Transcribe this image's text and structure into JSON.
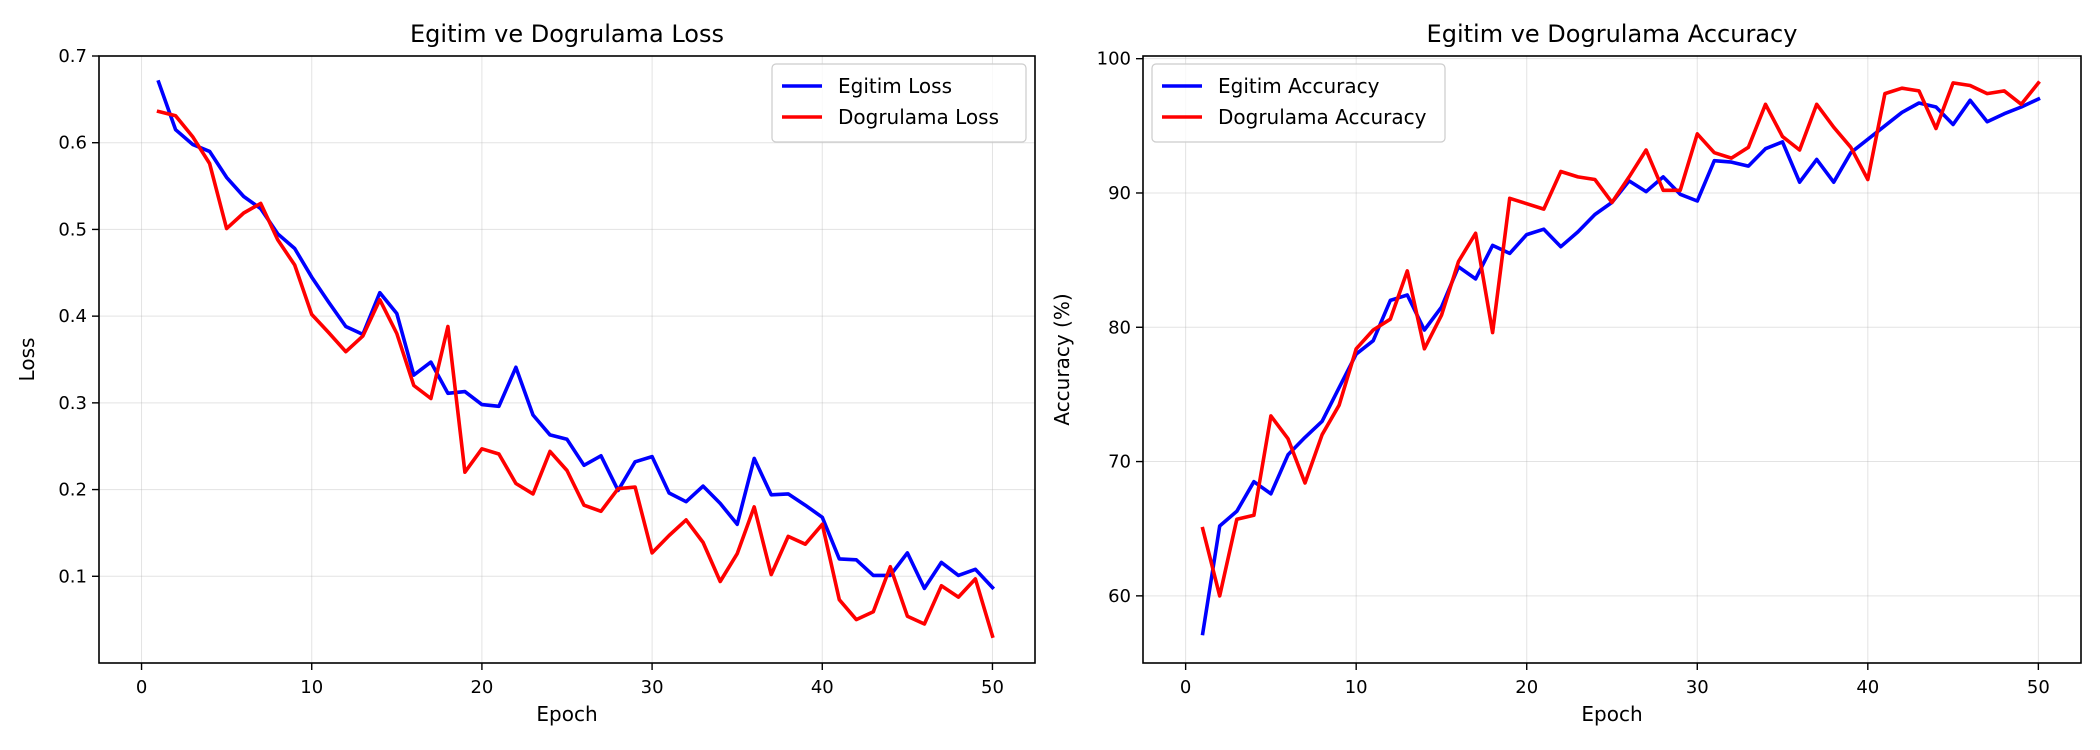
{
  "chart_data": [
    {
      "type": "line",
      "title": "Egitim ve Dogrulama Loss",
      "xlabel": "Epoch",
      "ylabel": "Loss",
      "xlim": [
        -2.5,
        52.5
      ],
      "ylim": [
        0.0,
        0.7
      ],
      "xticks": [
        0,
        10,
        20,
        30,
        40,
        50
      ],
      "yticks": [
        0.1,
        0.2,
        0.3,
        0.4,
        0.5,
        0.6,
        0.7
      ],
      "ytick_labels": [
        "0.1",
        "0.2",
        "0.3",
        "0.4",
        "0.5",
        "0.6",
        "0.7"
      ],
      "grid": true,
      "legend_position": "top-right",
      "x": [
        1,
        2,
        3,
        4,
        5,
        6,
        7,
        8,
        9,
        10,
        11,
        12,
        13,
        14,
        15,
        16,
        17,
        18,
        19,
        20,
        21,
        22,
        23,
        24,
        25,
        26,
        27,
        28,
        29,
        30,
        31,
        32,
        33,
        34,
        35,
        36,
        37,
        38,
        39,
        40,
        41,
        42,
        43,
        44,
        45,
        46,
        47,
        48,
        49,
        50
      ],
      "series": [
        {
          "name": "Egitim Loss",
          "color": "#0000ff",
          "values": [
            0.67,
            0.615,
            0.598,
            0.59,
            0.56,
            0.538,
            0.524,
            0.495,
            0.478,
            0.445,
            0.416,
            0.388,
            0.379,
            0.427,
            0.403,
            0.332,
            0.347,
            0.311,
            0.313,
            0.298,
            0.296,
            0.341,
            0.286,
            0.263,
            0.258,
            0.228,
            0.239,
            0.199,
            0.232,
            0.238,
            0.196,
            0.186,
            0.204,
            0.184,
            0.16,
            0.236,
            0.194,
            0.195,
            0.182,
            0.168,
            0.12,
            0.119,
            0.101,
            0.101,
            0.127,
            0.086,
            0.116,
            0.101,
            0.108,
            0.087
          ]
        },
        {
          "name": "Dogrulama Loss",
          "color": "#ff0000",
          "values": [
            0.636,
            0.631,
            0.607,
            0.576,
            0.501,
            0.519,
            0.53,
            0.488,
            0.459,
            0.402,
            0.381,
            0.359,
            0.377,
            0.419,
            0.38,
            0.32,
            0.305,
            0.388,
            0.22,
            0.247,
            0.241,
            0.207,
            0.195,
            0.244,
            0.222,
            0.182,
            0.175,
            0.201,
            0.203,
            0.127,
            0.147,
            0.165,
            0.139,
            0.094,
            0.126,
            0.18,
            0.102,
            0.146,
            0.137,
            0.16,
            0.073,
            0.05,
            0.059,
            0.111,
            0.054,
            0.045,
            0.089,
            0.076,
            0.097,
            0.031
          ]
        }
      ]
    },
    {
      "type": "line",
      "title": "Egitim ve Dogrulama Accuracy",
      "xlabel": "Epoch",
      "ylabel": "Accuracy (%)",
      "xlim": [
        -2.5,
        52.5
      ],
      "ylim": [
        55.0,
        100.2
      ],
      "xticks": [
        0,
        10,
        20,
        30,
        40,
        50
      ],
      "yticks": [
        60,
        70,
        80,
        90,
        100
      ],
      "ytick_labels": [
        "60",
        "70",
        "80",
        "90",
        "100"
      ],
      "grid": true,
      "legend_position": "top-left",
      "x": [
        1,
        2,
        3,
        4,
        5,
        6,
        7,
        8,
        9,
        10,
        11,
        12,
        13,
        14,
        15,
        16,
        17,
        18,
        19,
        20,
        21,
        22,
        23,
        24,
        25,
        26,
        27,
        28,
        29,
        30,
        31,
        32,
        33,
        34,
        35,
        36,
        37,
        38,
        39,
        40,
        41,
        42,
        43,
        44,
        45,
        46,
        47,
        48,
        49,
        50
      ],
      "series": [
        {
          "name": "Egitim Accuracy",
          "color": "#0000ff",
          "values": [
            57.2,
            65.2,
            66.3,
            68.5,
            67.6,
            70.5,
            71.8,
            73.0,
            75.5,
            78.0,
            79.0,
            82.0,
            82.4,
            79.8,
            81.5,
            84.5,
            83.6,
            86.1,
            85.5,
            86.9,
            87.3,
            86.0,
            87.1,
            88.4,
            89.3,
            90.9,
            90.1,
            91.2,
            89.9,
            89.4,
            92.4,
            92.3,
            92.0,
            93.3,
            93.8,
            90.8,
            92.5,
            90.8,
            93.0,
            94.0,
            95.0,
            96.0,
            96.7,
            96.4,
            95.1,
            96.9,
            95.3,
            95.9,
            96.4,
            97.0
          ]
        },
        {
          "name": "Dogrulama Accuracy",
          "color": "#ff0000",
          "values": [
            65.0,
            60.0,
            65.7,
            66.0,
            73.4,
            71.7,
            68.4,
            72.0,
            74.2,
            78.4,
            79.8,
            80.6,
            84.2,
            78.4,
            80.9,
            84.9,
            87.0,
            79.6,
            89.6,
            89.2,
            88.8,
            91.6,
            91.2,
            91.0,
            89.3,
            91.2,
            93.2,
            90.2,
            90.2,
            94.4,
            93.0,
            92.6,
            93.4,
            96.6,
            94.2,
            93.2,
            96.6,
            94.9,
            93.4,
            91.0,
            97.4,
            97.8,
            97.6,
            94.8,
            98.2,
            98.0,
            97.4,
            97.6,
            96.6,
            98.2
          ]
        }
      ]
    }
  ]
}
